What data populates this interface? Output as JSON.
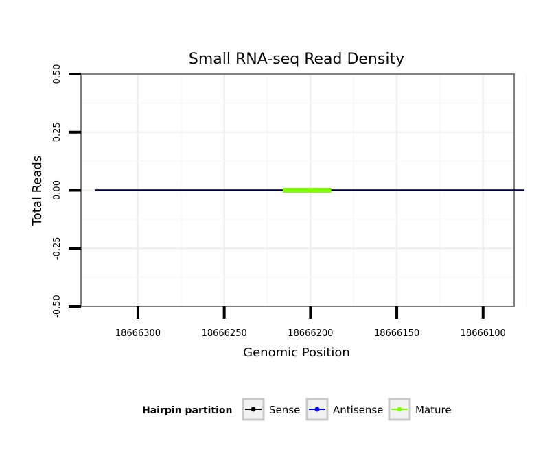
{
  "chart_data": {
    "type": "line",
    "title": "Small RNA-seq Read Density",
    "xlabel": "Genomic Position",
    "ylabel": "Total Reads",
    "x_reversed": true,
    "xlim": [
      18666333,
      18666082
    ],
    "ylim": [
      -0.5,
      0.5
    ],
    "x_ticks": [
      18666300,
      18666250,
      18666200,
      18666150,
      18666100
    ],
    "x_tick_labels": [
      "18666300",
      "18666250",
      "18666200",
      "18666150",
      "18666100"
    ],
    "y_ticks": [
      -0.5,
      -0.25,
      0,
      0.25,
      0.5
    ],
    "y_tick_labels": [
      "-0.50",
      "-0.25",
      "0.00",
      "0.25",
      "0.50"
    ],
    "grid": true,
    "series": [
      {
        "name": "Sense",
        "color": "#000000",
        "x": [
          18666325,
          18666076
        ],
        "y": [
          0,
          0
        ]
      },
      {
        "name": "Antisense",
        "color": "#0000ff",
        "x": [
          18666325,
          18666076
        ],
        "y": [
          0,
          0
        ]
      },
      {
        "name": "Mature",
        "color": "#7fff00",
        "x": [
          18666216,
          18666188
        ],
        "y": [
          0,
          0
        ]
      }
    ],
    "legend": {
      "title": "Hairpin partition",
      "position": "bottom",
      "entries": [
        {
          "label": "Sense",
          "color": "#000000"
        },
        {
          "label": "Antisense",
          "color": "#0000ff"
        },
        {
          "label": "Mature",
          "color": "#7fff00"
        }
      ]
    }
  }
}
